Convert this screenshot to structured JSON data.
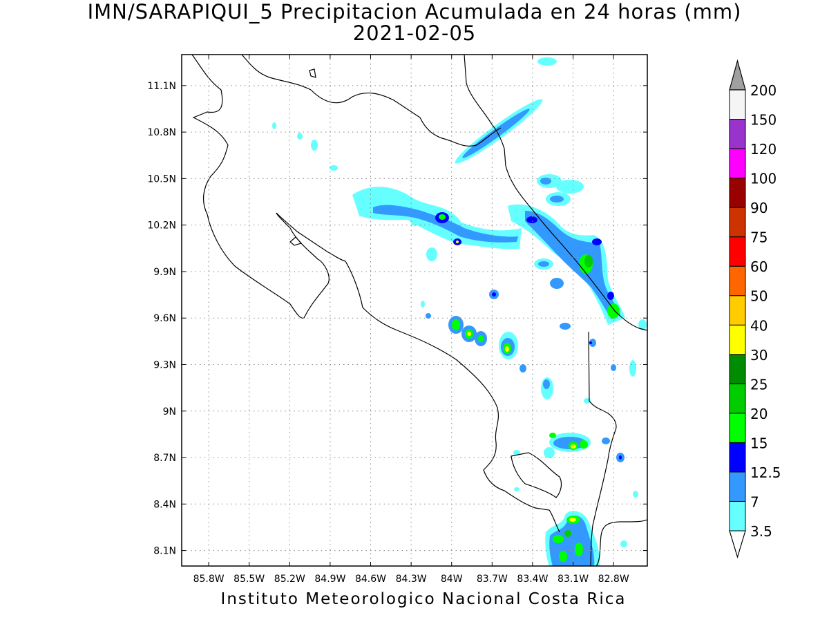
{
  "title": {
    "line1": "IMN/SARAPIQUI_5 Precipitacion Acumulada en 24 horas (mm)",
    "line2": "2021-02-05"
  },
  "footer": "Instituto Meteorologico Nacional Costa Rica",
  "map": {
    "lon_range": [
      -86.0,
      -82.55
    ],
    "lat_range": [
      8.0,
      11.3
    ],
    "x_ticks": [
      {
        "lon": -85.8,
        "label": "85.8W"
      },
      {
        "lon": -85.5,
        "label": "85.5W"
      },
      {
        "lon": -85.2,
        "label": "85.2W"
      },
      {
        "lon": -84.9,
        "label": "84.9W"
      },
      {
        "lon": -84.6,
        "label": "84.6W"
      },
      {
        "lon": -84.3,
        "label": "84.3W"
      },
      {
        "lon": -84.0,
        "label": "84W"
      },
      {
        "lon": -83.7,
        "label": "83.7W"
      },
      {
        "lon": -83.4,
        "label": "83.4W"
      },
      {
        "lon": -83.1,
        "label": "83.1W"
      },
      {
        "lon": -82.8,
        "label": "82.8W"
      }
    ],
    "y_ticks": [
      {
        "lat": 11.1,
        "label": "11.1N"
      },
      {
        "lat": 10.8,
        "label": "10.8N"
      },
      {
        "lat": 10.5,
        "label": "10.5N"
      },
      {
        "lat": 10.2,
        "label": "10.2N"
      },
      {
        "lat": 9.9,
        "label": "9.9N"
      },
      {
        "lat": 9.6,
        "label": "9.6N"
      },
      {
        "lat": 9.3,
        "label": "9.3N"
      },
      {
        "lat": 9.0,
        "label": "9N"
      },
      {
        "lat": 8.7,
        "label": "8.7N"
      },
      {
        "lat": 8.4,
        "label": "8.4N"
      },
      {
        "lat": 8.1,
        "label": "8.1N"
      }
    ],
    "grid": "dotted"
  },
  "legend": {
    "levels": [
      {
        "label": "3.5",
        "color": "#66ffff"
      },
      {
        "label": "7",
        "color": "#3399ff"
      },
      {
        "label": "12.5",
        "color": "#0000ff"
      },
      {
        "label": "15",
        "color": "#00ff00"
      },
      {
        "label": "20",
        "color": "#00cc00"
      },
      {
        "label": "25",
        "color": "#008c00"
      },
      {
        "label": "30",
        "color": "#ffff00"
      },
      {
        "label": "40",
        "color": "#ffcc00"
      },
      {
        "label": "50",
        "color": "#ff6600"
      },
      {
        "label": "60",
        "color": "#ff0000"
      },
      {
        "label": "75",
        "color": "#cc3300"
      },
      {
        "label": "90",
        "color": "#990000"
      },
      {
        "label": "100",
        "color": "#ff00ff"
      },
      {
        "label": "120",
        "color": "#9933cc"
      },
      {
        "label": "150",
        "color": "#f5f5f5"
      },
      {
        "label": "200",
        "color": "#a0a0a0"
      }
    ],
    "low_end_color": "#ffffff",
    "high_end_color": "#a0a0a0"
  }
}
